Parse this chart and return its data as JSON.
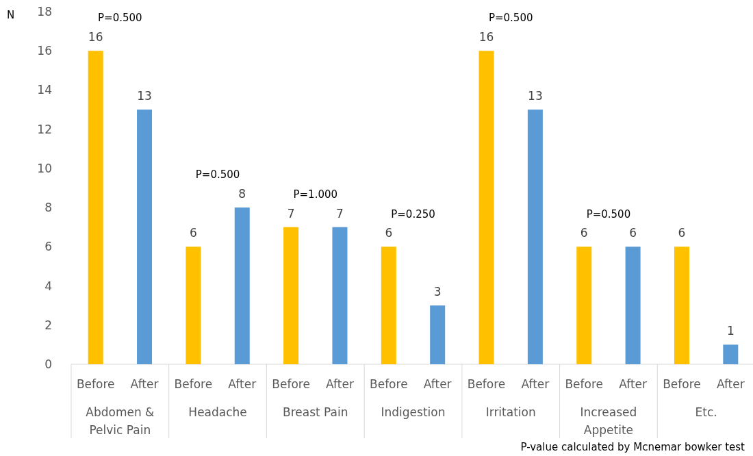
{
  "chart_data": {
    "type": "bar",
    "ylabel": "N",
    "categories": [
      "Abdomen & Pelvic Pain",
      "Headache",
      "Breast Pain",
      "Indigestion",
      "Irritation",
      "Increased Appetite",
      "Etc."
    ],
    "series": [
      {
        "name": "Before",
        "color": "#ffc000",
        "values": [
          16,
          6,
          7,
          6,
          16,
          6,
          6
        ]
      },
      {
        "name": "After",
        "color": "#5b9bd5",
        "values": [
          13,
          8,
          7,
          3,
          13,
          6,
          1
        ]
      }
    ],
    "ylim": [
      0,
      18
    ],
    "yticks": [
      0,
      2,
      4,
      6,
      8,
      10,
      12,
      14,
      16,
      18
    ],
    "grid": false,
    "data_labels": true,
    "annotations": [
      "P=0.500",
      "P=0.500",
      "P=1.000",
      "P=0.250",
      "P=0.500",
      "P=0.500",
      "P-value calculated by Mcnemar bowker test"
    ]
  }
}
